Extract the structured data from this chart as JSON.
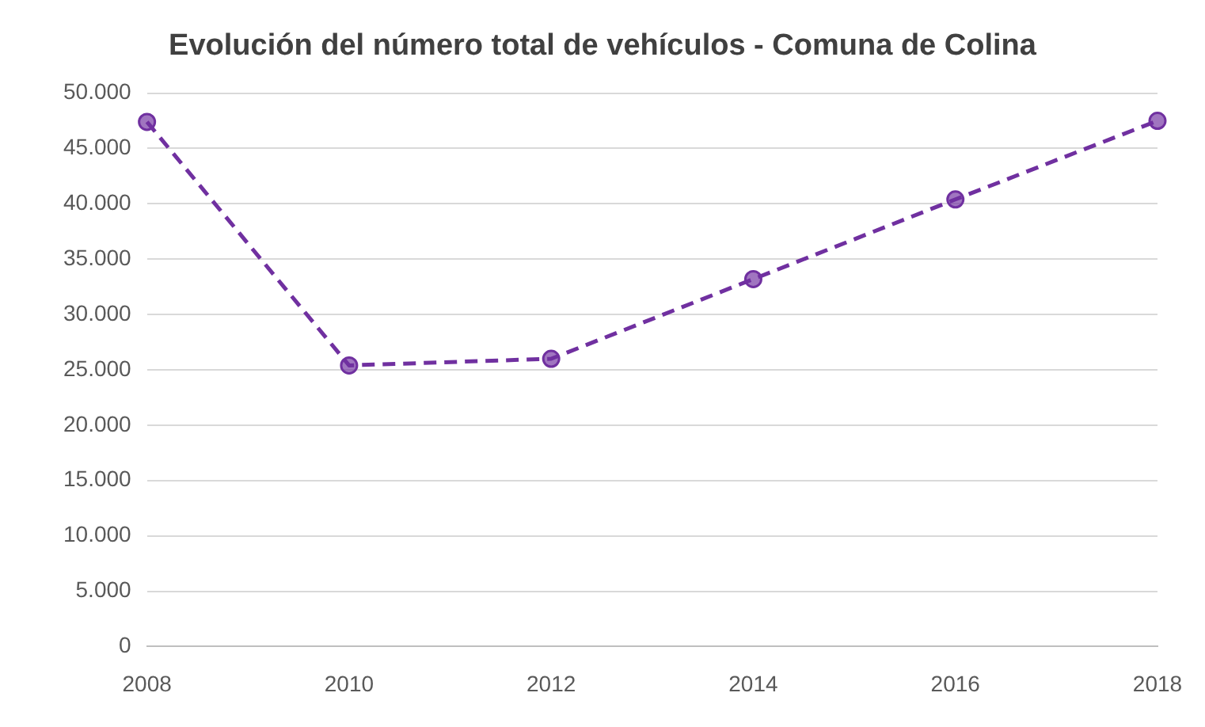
{
  "chart_data": {
    "type": "line",
    "title": "Evolución del número total de vehículos - Comuna de Colina",
    "categories": [
      "2008",
      "2010",
      "2012",
      "2014",
      "2016",
      "2018"
    ],
    "series": [
      {
        "color": "#7030a0",
        "values": [
          47400,
          25400,
          26000,
          33200,
          40400,
          47500
        ]
      }
    ],
    "ylim": [
      0,
      50000
    ],
    "yticks": [
      {
        "value": 0,
        "label": "0"
      },
      {
        "value": 5000,
        "label": "5.000"
      },
      {
        "value": 10000,
        "label": "10.000"
      },
      {
        "value": 15000,
        "label": "15.000"
      },
      {
        "value": 20000,
        "label": "20.000"
      },
      {
        "value": 25000,
        "label": "25.000"
      },
      {
        "value": 30000,
        "label": "30.000"
      },
      {
        "value": 35000,
        "label": "35.000"
      },
      {
        "value": 40000,
        "label": "40.000"
      },
      {
        "value": 45000,
        "label": "45.000"
      },
      {
        "value": 50000,
        "label": "50.000"
      }
    ],
    "grid": "y",
    "legend": false,
    "marker": "circle",
    "line_style": "dashed"
  }
}
